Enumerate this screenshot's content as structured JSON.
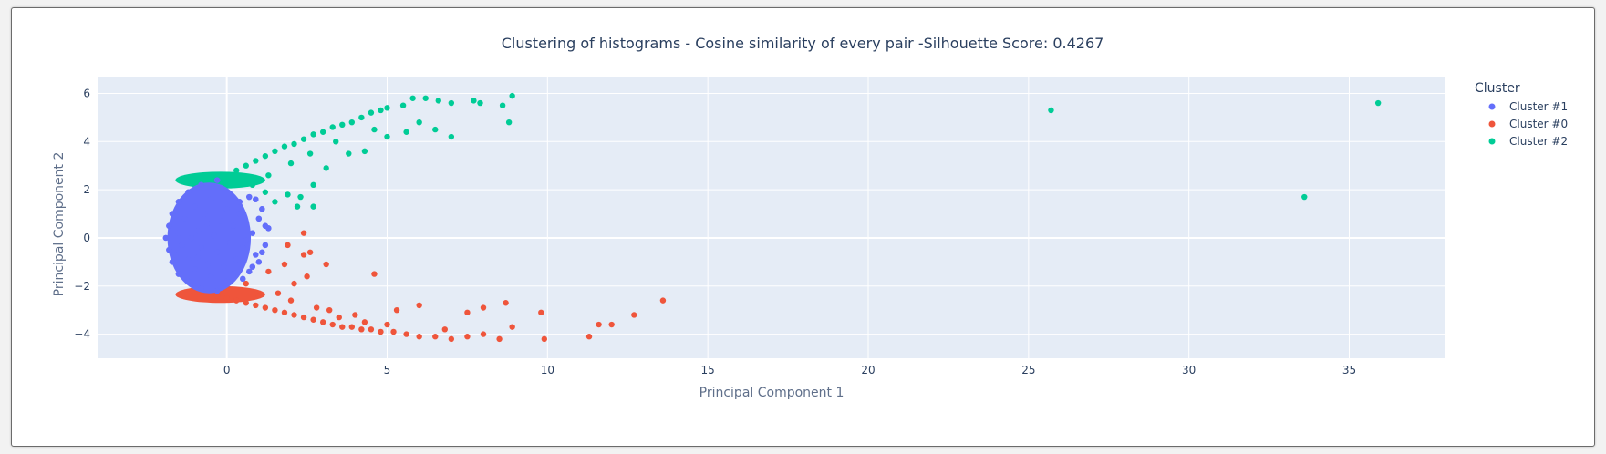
{
  "chart_data": {
    "type": "scatter",
    "title": "Clustering of histograms - Cosine similarity of every pair -Silhouette Score: 0.4267",
    "xlabel": "Principal Component 1",
    "ylabel": "Principal Component 2",
    "xlim": [
      -4,
      38
    ],
    "ylim": [
      -5,
      6.7
    ],
    "xticks": [
      0,
      5,
      10,
      15,
      20,
      25,
      30,
      35
    ],
    "yticks": [
      -4,
      -2,
      0,
      2,
      4,
      6
    ],
    "grid": true,
    "legend": {
      "title": "Cluster",
      "position": "right"
    },
    "plot_bg": "#e5ecf6",
    "series": [
      {
        "name": "Cluster #1",
        "color": "#636efa",
        "points": [
          [
            -1.9,
            0.0
          ],
          [
            -1.8,
            0.5
          ],
          [
            -1.8,
            -0.5
          ],
          [
            -1.7,
            1.0
          ],
          [
            -1.7,
            -1.0
          ],
          [
            -1.5,
            1.5
          ],
          [
            -1.5,
            -1.5
          ],
          [
            -1.2,
            1.9
          ],
          [
            -1.2,
            -1.8
          ],
          [
            -0.8,
            2.2
          ],
          [
            -0.8,
            -2.1
          ],
          [
            -0.3,
            2.4
          ],
          [
            -0.3,
            -2.2
          ],
          [
            -1.5,
            0.2
          ],
          [
            -1.4,
            -0.3
          ],
          [
            -1.3,
            0.8
          ],
          [
            -1.2,
            -0.9
          ],
          [
            -1.0,
            1.3
          ],
          [
            -1.0,
            -1.3
          ],
          [
            -0.9,
            0.3
          ],
          [
            -0.8,
            -0.4
          ],
          [
            -0.7,
            1.0
          ],
          [
            -0.6,
            -1.1
          ],
          [
            -0.5,
            1.6
          ],
          [
            -0.5,
            -1.6
          ],
          [
            -0.4,
            0.1
          ],
          [
            -0.3,
            -0.6
          ],
          [
            -0.2,
            0.7
          ],
          [
            -0.1,
            -1.2
          ],
          [
            0.0,
            1.2
          ],
          [
            0.1,
            -0.2
          ],
          [
            0.2,
            0.5
          ],
          [
            0.3,
            -0.9
          ],
          [
            0.4,
            1.0
          ],
          [
            0.5,
            -0.4
          ],
          [
            0.6,
            0.6
          ],
          [
            0.7,
            -1.4
          ],
          [
            0.8,
            0.2
          ],
          [
            0.9,
            -0.7
          ],
          [
            1.0,
            0.8
          ],
          [
            1.2,
            0.5
          ],
          [
            1.1,
            -0.6
          ],
          [
            1.3,
            0.4
          ],
          [
            0.9,
            1.6
          ],
          [
            0.7,
            1.7
          ],
          [
            0.5,
            -1.7
          ],
          [
            0.8,
            -1.2
          ],
          [
            1.2,
            -0.3
          ],
          [
            0.6,
            -0.1
          ],
          [
            0.2,
            -1.5
          ],
          [
            -0.6,
            0.6
          ],
          [
            -1.1,
            0.0
          ],
          [
            -0.9,
            -0.8
          ],
          [
            -1.6,
            -0.7
          ],
          [
            -1.6,
            0.9
          ],
          [
            0.4,
            1.5
          ],
          [
            0.0,
            -1.8
          ],
          [
            1.0,
            -1.0
          ],
          [
            1.1,
            1.2
          ]
        ]
      },
      {
        "name": "Cluster #0",
        "color": "#ef553b",
        "points": [
          [
            -0.3,
            -2.4
          ],
          [
            0.0,
            -2.5
          ],
          [
            0.3,
            -2.6
          ],
          [
            0.6,
            -2.7
          ],
          [
            0.9,
            -2.8
          ],
          [
            1.2,
            -2.9
          ],
          [
            1.5,
            -3.0
          ],
          [
            1.8,
            -3.1
          ],
          [
            2.1,
            -3.2
          ],
          [
            2.4,
            -3.3
          ],
          [
            2.7,
            -3.4
          ],
          [
            3.0,
            -3.5
          ],
          [
            3.3,
            -3.6
          ],
          [
            3.6,
            -3.7
          ],
          [
            3.9,
            -3.7
          ],
          [
            4.2,
            -3.8
          ],
          [
            4.5,
            -3.8
          ],
          [
            4.8,
            -3.9
          ],
          [
            5.2,
            -3.9
          ],
          [
            5.6,
            -4.0
          ],
          [
            6.0,
            -4.1
          ],
          [
            6.5,
            -4.1
          ],
          [
            7.0,
            -4.2
          ],
          [
            7.5,
            -4.1
          ],
          [
            8.0,
            -4.0
          ],
          [
            8.5,
            -4.2
          ],
          [
            8.9,
            -3.7
          ],
          [
            9.9,
            -4.2
          ],
          [
            11.3,
            -4.1
          ],
          [
            11.6,
            -3.6
          ],
          [
            12.0,
            -3.6
          ],
          [
            12.7,
            -3.2
          ],
          [
            13.6,
            -2.6
          ],
          [
            9.8,
            -3.1
          ],
          [
            8.7,
            -2.7
          ],
          [
            8.0,
            -2.9
          ],
          [
            7.5,
            -3.1
          ],
          [
            6.0,
            -2.8
          ],
          [
            5.3,
            -3.0
          ],
          [
            4.6,
            -1.5
          ],
          [
            3.1,
            -1.1
          ],
          [
            2.5,
            -1.6
          ],
          [
            2.6,
            -0.6
          ],
          [
            2.4,
            -0.7
          ],
          [
            2.4,
            0.2
          ],
          [
            1.9,
            -0.3
          ],
          [
            1.8,
            -1.1
          ],
          [
            2.1,
            -1.9
          ],
          [
            1.3,
            -1.4
          ],
          [
            0.6,
            -1.9
          ],
          [
            1.6,
            -2.3
          ],
          [
            2.8,
            -2.9
          ],
          [
            3.5,
            -3.3
          ],
          [
            4.3,
            -3.5
          ],
          [
            5.0,
            -3.6
          ],
          [
            6.8,
            -3.8
          ],
          [
            4.0,
            -3.2
          ],
          [
            3.2,
            -3.0
          ],
          [
            2.0,
            -2.6
          ],
          [
            1.0,
            -2.4
          ]
        ]
      },
      {
        "name": "Cluster #2",
        "color": "#00cc96",
        "points": [
          [
            -0.3,
            2.5
          ],
          [
            0.0,
            2.6
          ],
          [
            0.3,
            2.8
          ],
          [
            0.6,
            3.0
          ],
          [
            0.9,
            3.2
          ],
          [
            1.2,
            3.4
          ],
          [
            1.5,
            3.6
          ],
          [
            1.8,
            3.8
          ],
          [
            2.1,
            3.9
          ],
          [
            2.4,
            4.1
          ],
          [
            2.7,
            4.3
          ],
          [
            3.0,
            4.4
          ],
          [
            3.3,
            4.6
          ],
          [
            3.6,
            4.7
          ],
          [
            3.9,
            4.8
          ],
          [
            4.2,
            5.0
          ],
          [
            4.5,
            5.2
          ],
          [
            4.8,
            5.3
          ],
          [
            5.0,
            5.4
          ],
          [
            5.5,
            5.5
          ],
          [
            5.8,
            5.8
          ],
          [
            6.2,
            5.8
          ],
          [
            6.6,
            5.7
          ],
          [
            7.0,
            5.6
          ],
          [
            7.7,
            5.7
          ],
          [
            7.9,
            5.6
          ],
          [
            8.6,
            5.5
          ],
          [
            8.8,
            4.8
          ],
          [
            8.9,
            5.9
          ],
          [
            7.0,
            4.2
          ],
          [
            6.5,
            4.5
          ],
          [
            6.0,
            4.8
          ],
          [
            5.6,
            4.4
          ],
          [
            5.0,
            4.2
          ],
          [
            4.3,
            3.6
          ],
          [
            3.8,
            3.5
          ],
          [
            3.1,
            2.9
          ],
          [
            2.7,
            2.2
          ],
          [
            2.3,
            1.7
          ],
          [
            2.7,
            1.3
          ],
          [
            2.2,
            1.3
          ],
          [
            1.9,
            1.8
          ],
          [
            1.5,
            1.5
          ],
          [
            1.2,
            1.9
          ],
          [
            0.8,
            2.2
          ],
          [
            1.3,
            2.6
          ],
          [
            2.0,
            3.1
          ],
          [
            2.6,
            3.5
          ],
          [
            3.4,
            4.0
          ],
          [
            4.6,
            4.5
          ],
          [
            25.7,
            5.3
          ],
          [
            33.6,
            1.7
          ],
          [
            35.9,
            5.6
          ]
        ]
      }
    ]
  }
}
